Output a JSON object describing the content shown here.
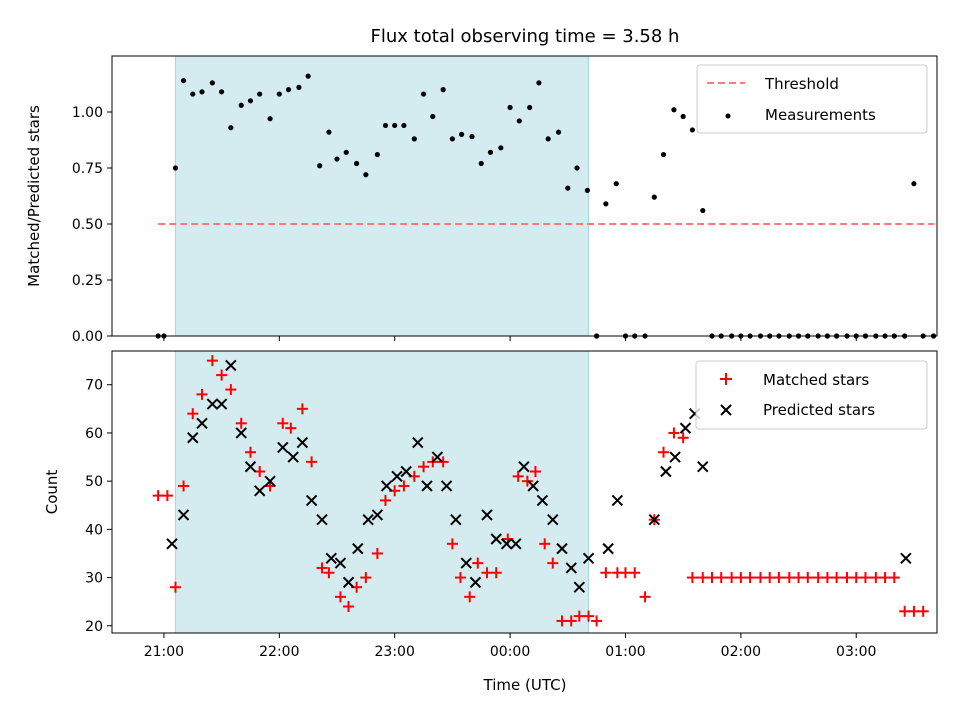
{
  "chart_data": {
    "type": "scatter",
    "title": "Flux total observing time = 3.58 h",
    "xlabel": "Time (UTC)",
    "x_unit": "hours",
    "xlim": [
      20.55,
      27.7
    ],
    "xticks": [
      21,
      22,
      23,
      24,
      25,
      26,
      27
    ],
    "xtick_labels": [
      "21:00",
      "22:00",
      "23:00",
      "00:00",
      "01:00",
      "02:00",
      "03:00"
    ],
    "shaded_span": [
      21.1,
      24.68
    ],
    "shade_color": "#d4ebf0",
    "panels": [
      {
        "ylabel": "Matched/Predicted stars",
        "ylim": [
          0,
          1.25
        ],
        "yticks": [
          0,
          0.25,
          0.5,
          0.75,
          1.0
        ],
        "ytick_labels": [
          "0.00",
          "0.25",
          "0.50",
          "0.75",
          "1.00"
        ],
        "legend_position": "top-right",
        "legend": [
          "Threshold",
          "Measurements"
        ],
        "threshold": {
          "name": "Threshold",
          "value": 0.5,
          "x_range": [
            20.95,
            27.68
          ],
          "color": "#ff7a7a"
        },
        "series": [
          {
            "name": "Measurements",
            "color": "#000000",
            "x": [
              20.95,
              21.0,
              21.1,
              21.17,
              21.25,
              21.33,
              21.42,
              21.5,
              21.58,
              21.67,
              21.75,
              21.83,
              21.92,
              22.0,
              22.08,
              22.17,
              22.25,
              22.35,
              22.43,
              22.5,
              22.58,
              22.67,
              22.75,
              22.85,
              22.92,
              23.0,
              23.08,
              23.17,
              23.25,
              23.33,
              23.42,
              23.5,
              23.58,
              23.67,
              23.75,
              23.83,
              23.92,
              24.0,
              24.08,
              24.17,
              24.25,
              24.33,
              24.42,
              24.5,
              24.58,
              24.67,
              24.75,
              24.83,
              24.92,
              25.0,
              25.08,
              25.17,
              25.25,
              25.33,
              25.42,
              25.5,
              25.58,
              25.67,
              25.75,
              25.83,
              25.92,
              26.0,
              26.08,
              26.17,
              26.25,
              26.33,
              26.42,
              26.5,
              26.58,
              26.67,
              26.75,
              26.83,
              26.92,
              27.0,
              27.08,
              27.17,
              27.25,
              27.33,
              27.42,
              27.5,
              27.58,
              27.67
            ],
            "y": [
              0.0,
              0.0,
              0.75,
              1.14,
              1.08,
              1.09,
              1.13,
              1.09,
              0.93,
              1.03,
              1.05,
              1.08,
              0.97,
              1.08,
              1.1,
              1.11,
              1.16,
              0.76,
              0.91,
              0.79,
              0.82,
              0.77,
              0.72,
              0.81,
              0.94,
              0.94,
              0.94,
              0.88,
              1.08,
              0.98,
              1.1,
              0.88,
              0.9,
              0.89,
              0.77,
              0.82,
              0.84,
              1.02,
              0.96,
              1.02,
              1.13,
              0.88,
              0.91,
              0.66,
              0.75,
              0.65,
              0.0,
              0.59,
              0.68,
              0.0,
              0.0,
              0.0,
              0.62,
              0.81,
              1.01,
              0.98,
              0.92,
              0.56,
              0.0,
              0.0,
              0.0,
              0.0,
              0.0,
              0.0,
              0.0,
              0.0,
              0.0,
              0.0,
              0.0,
              0.0,
              0.0,
              0.0,
              0.0,
              0.0,
              0.0,
              0.0,
              0.0,
              0.0,
              0.0,
              0.68,
              0.0,
              0.0
            ]
          }
        ]
      },
      {
        "ylabel": "Count",
        "ylim": [
          18.5,
          77
        ],
        "yticks": [
          20,
          30,
          40,
          50,
          60,
          70
        ],
        "ytick_labels": [
          "20",
          "30",
          "40",
          "50",
          "60",
          "70"
        ],
        "legend_position": "top-right",
        "legend": [
          "Matched stars",
          "Predicted stars"
        ],
        "series": [
          {
            "name": "Matched stars",
            "marker": "plus",
            "color": "#ff0000",
            "x": [
              20.95,
              21.03,
              21.1,
              21.17,
              21.25,
              21.33,
              21.42,
              21.5,
              21.58,
              21.67,
              21.75,
              21.83,
              21.92,
              22.03,
              22.1,
              22.2,
              22.28,
              22.37,
              22.43,
              22.53,
              22.6,
              22.67,
              22.75,
              22.85,
              22.92,
              23.0,
              23.08,
              23.17,
              23.25,
              23.33,
              23.42,
              23.5,
              23.57,
              23.65,
              23.72,
              23.8,
              23.88,
              23.98,
              24.07,
              24.15,
              24.22,
              24.3,
              24.37,
              24.45,
              24.53,
              24.6,
              24.68,
              24.75,
              24.83,
              24.93,
              25.0,
              25.08,
              25.17,
              25.25,
              25.33,
              25.42,
              25.5,
              25.58,
              25.67,
              25.75,
              25.83,
              25.92,
              26.0,
              26.08,
              26.17,
              26.25,
              26.33,
              26.42,
              26.5,
              26.58,
              26.67,
              26.75,
              26.83,
              26.92,
              27.0,
              27.08,
              27.17,
              27.25,
              27.33,
              27.42,
              27.5,
              27.58
            ],
            "y": [
              47,
              47,
              28,
              49,
              64,
              68,
              75,
              72,
              69,
              62,
              56,
              52,
              49,
              62,
              61,
              65,
              54,
              32,
              31,
              26,
              24,
              28,
              30,
              35,
              46,
              48,
              49,
              51,
              53,
              54,
              54,
              37,
              30,
              26,
              33,
              31,
              31,
              38,
              51,
              50,
              52,
              37,
              33,
              21,
              21,
              22,
              22,
              21,
              31,
              31,
              31,
              31,
              26,
              42,
              56,
              60,
              59,
              30,
              30,
              30,
              30,
              30,
              30,
              30,
              30,
              30,
              30,
              30,
              30,
              30,
              30,
              30,
              30,
              30,
              30,
              30,
              30,
              30,
              30,
              23,
              23,
              23
            ]
          },
          {
            "name": "Predicted stars",
            "marker": "x",
            "color": "#000000",
            "x": [
              21.07,
              21.17,
              21.25,
              21.33,
              21.42,
              21.5,
              21.58,
              21.67,
              21.75,
              21.83,
              21.92,
              22.03,
              22.12,
              22.2,
              22.28,
              22.37,
              22.45,
              22.53,
              22.6,
              22.68,
              22.77,
              22.85,
              22.93,
              23.02,
              23.1,
              23.2,
              23.28,
              23.37,
              23.45,
              23.53,
              23.62,
              23.7,
              23.8,
              23.88,
              23.97,
              24.05,
              24.12,
              24.2,
              24.28,
              24.37,
              24.45,
              24.53,
              24.6,
              24.68,
              24.85,
              24.93,
              25.25,
              25.35,
              25.43,
              25.52,
              25.6,
              25.67,
              27.43
            ],
            "y": [
              37,
              43,
              59,
              62,
              66,
              66,
              74,
              60,
              53,
              48,
              50,
              57,
              55,
              58,
              46,
              42,
              34,
              33,
              29,
              36,
              42,
              43,
              49,
              51,
              52,
              58,
              49,
              55,
              49,
              42,
              33,
              29,
              43,
              38,
              37,
              37,
              53,
              49,
              46,
              42,
              36,
              32,
              28,
              34,
              36,
              46,
              42,
              52,
              55,
              61,
              64,
              53,
              34
            ]
          }
        ]
      }
    ]
  }
}
